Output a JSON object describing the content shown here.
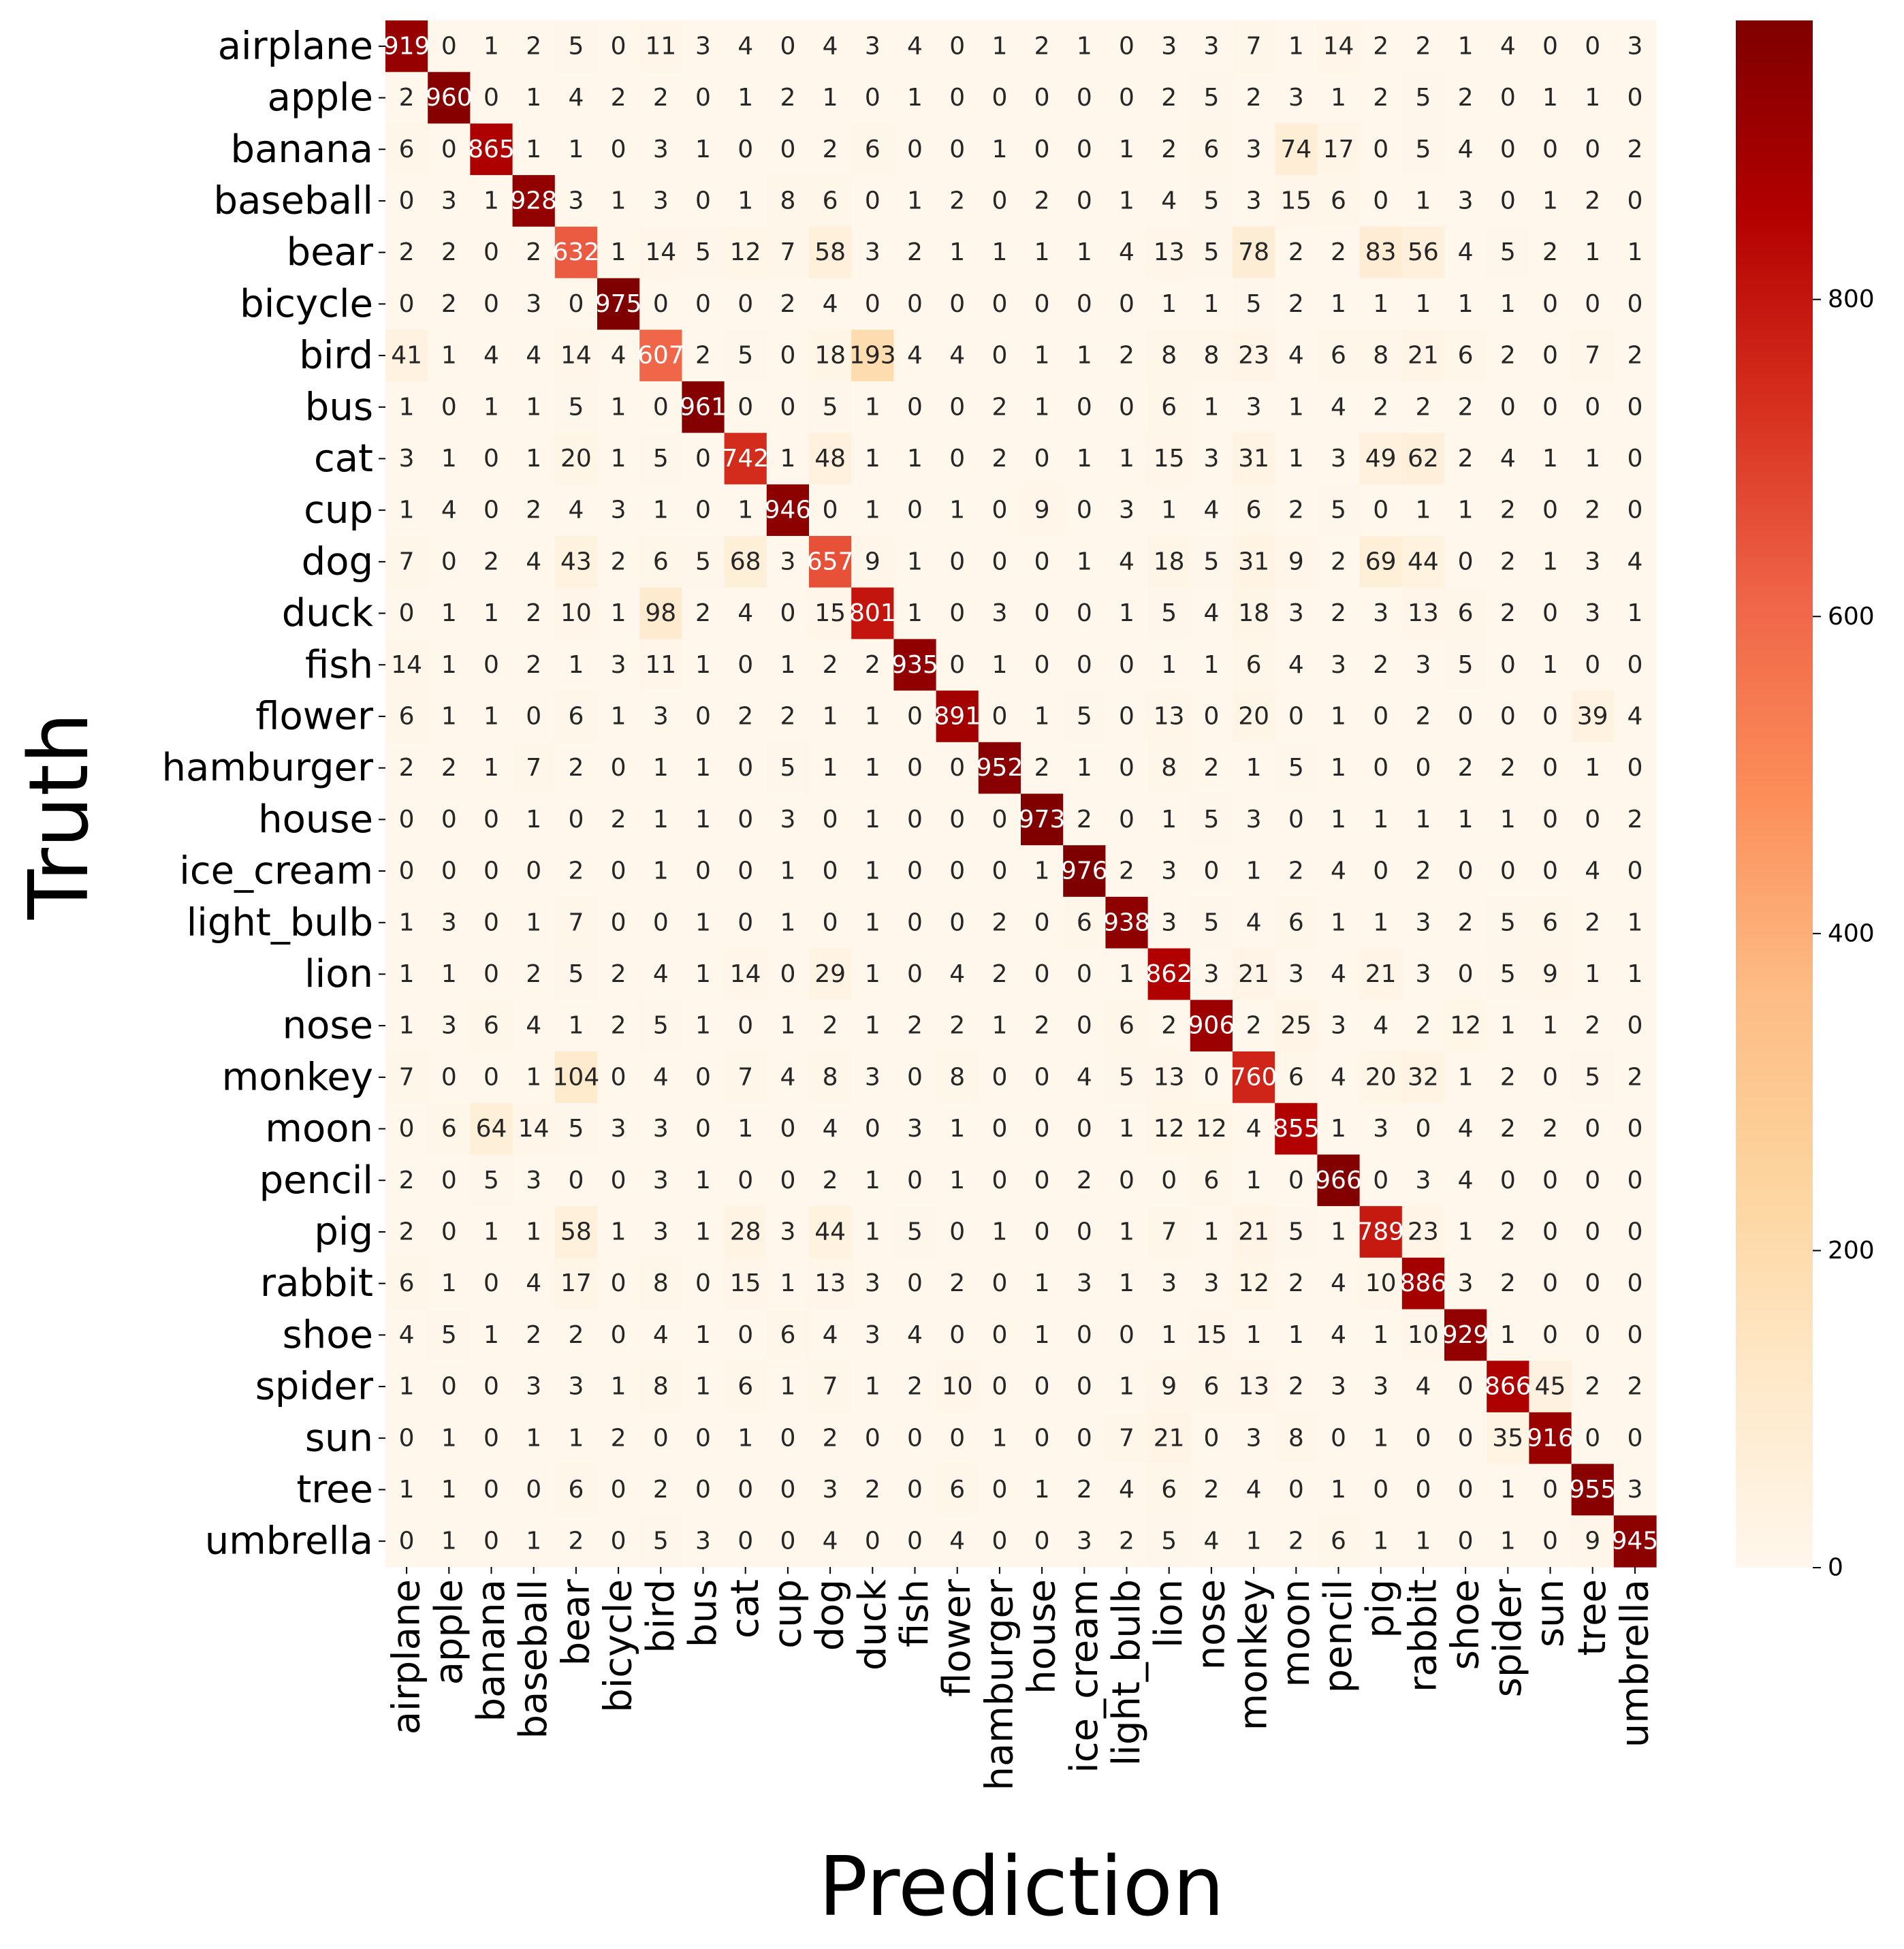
{
  "chart_data": {
    "type": "heatmap",
    "title": "",
    "xlabel": "Prediction",
    "ylabel": "Truth",
    "colormap": "OrRd",
    "colorbar": {
      "vmin": 0,
      "vmax": 976,
      "ticks": [
        0,
        200,
        400,
        600,
        800
      ]
    },
    "labels": [
      "airplane",
      "apple",
      "banana",
      "baseball",
      "bear",
      "bicycle",
      "bird",
      "bus",
      "cat",
      "cup",
      "dog",
      "duck",
      "fish",
      "flower",
      "hamburger",
      "house",
      "ice_cream",
      "light_bulb",
      "lion",
      "nose",
      "monkey",
      "moon",
      "pencil",
      "pig",
      "rabbit",
      "shoe",
      "spider",
      "sun",
      "tree",
      "umbrella"
    ],
    "matrix": [
      [
        919,
        0,
        1,
        2,
        5,
        0,
        11,
        3,
        4,
        0,
        4,
        3,
        4,
        0,
        1,
        2,
        1,
        0,
        3,
        3,
        7,
        1,
        14,
        2,
        2,
        1,
        4,
        0,
        0,
        3
      ],
      [
        2,
        960,
        0,
        1,
        4,
        2,
        2,
        0,
        1,
        2,
        1,
        0,
        1,
        0,
        0,
        0,
        0,
        0,
        2,
        5,
        2,
        3,
        1,
        2,
        5,
        2,
        0,
        1,
        1,
        0
      ],
      [
        6,
        0,
        865,
        1,
        1,
        0,
        3,
        1,
        0,
        0,
        2,
        6,
        0,
        0,
        1,
        0,
        0,
        1,
        2,
        6,
        3,
        74,
        17,
        0,
        5,
        4,
        0,
        0,
        0,
        2
      ],
      [
        0,
        3,
        1,
        928,
        3,
        1,
        3,
        0,
        1,
        8,
        6,
        0,
        1,
        2,
        0,
        2,
        0,
        1,
        4,
        5,
        3,
        15,
        6,
        0,
        1,
        3,
        0,
        1,
        2,
        0
      ],
      [
        2,
        2,
        0,
        2,
        632,
        1,
        14,
        5,
        12,
        7,
        58,
        3,
        2,
        1,
        1,
        1,
        1,
        4,
        13,
        5,
        78,
        2,
        2,
        83,
        56,
        4,
        5,
        2,
        1,
        1
      ],
      [
        0,
        2,
        0,
        3,
        0,
        975,
        0,
        0,
        0,
        2,
        4,
        0,
        0,
        0,
        0,
        0,
        0,
        0,
        1,
        1,
        5,
        2,
        1,
        1,
        1,
        1,
        1,
        0,
        0,
        0
      ],
      [
        41,
        1,
        4,
        4,
        14,
        4,
        607,
        2,
        5,
        0,
        18,
        193,
        4,
        4,
        0,
        1,
        1,
        2,
        8,
        8,
        23,
        4,
        6,
        8,
        21,
        6,
        2,
        0,
        7,
        2
      ],
      [
        1,
        0,
        1,
        1,
        5,
        1,
        0,
        961,
        0,
        0,
        5,
        1,
        0,
        0,
        2,
        1,
        0,
        0,
        6,
        1,
        3,
        1,
        4,
        2,
        2,
        2,
        0,
        0,
        0,
        0
      ],
      [
        3,
        1,
        0,
        1,
        20,
        1,
        5,
        0,
        742,
        1,
        48,
        1,
        1,
        0,
        2,
        0,
        1,
        1,
        15,
        3,
        31,
        1,
        3,
        49,
        62,
        2,
        4,
        1,
        1,
        0
      ],
      [
        1,
        4,
        0,
        2,
        4,
        3,
        1,
        0,
        1,
        946,
        0,
        1,
        0,
        1,
        0,
        9,
        0,
        3,
        1,
        4,
        6,
        2,
        5,
        0,
        1,
        1,
        2,
        0,
        2,
        0
      ],
      [
        7,
        0,
        2,
        4,
        43,
        2,
        6,
        5,
        68,
        3,
        657,
        9,
        1,
        0,
        0,
        0,
        1,
        4,
        18,
        5,
        31,
        9,
        2,
        69,
        44,
        0,
        2,
        1,
        3,
        4
      ],
      [
        0,
        1,
        1,
        2,
        10,
        1,
        98,
        2,
        4,
        0,
        15,
        801,
        1,
        0,
        3,
        0,
        0,
        1,
        5,
        4,
        18,
        3,
        2,
        3,
        13,
        6,
        2,
        0,
        3,
        1
      ],
      [
        14,
        1,
        0,
        2,
        1,
        3,
        11,
        1,
        0,
        1,
        2,
        2,
        935,
        0,
        1,
        0,
        0,
        0,
        1,
        1,
        6,
        4,
        3,
        2,
        3,
        5,
        0,
        1,
        0,
        0
      ],
      [
        6,
        1,
        1,
        0,
        6,
        1,
        3,
        0,
        2,
        2,
        1,
        1,
        0,
        891,
        0,
        1,
        5,
        0,
        13,
        0,
        20,
        0,
        1,
        0,
        2,
        0,
        0,
        0,
        39,
        4
      ],
      [
        2,
        2,
        1,
        7,
        2,
        0,
        1,
        1,
        0,
        5,
        1,
        1,
        0,
        0,
        952,
        2,
        1,
        0,
        8,
        2,
        1,
        5,
        1,
        0,
        0,
        2,
        2,
        0,
        1,
        0
      ],
      [
        0,
        0,
        0,
        1,
        0,
        2,
        1,
        1,
        0,
        3,
        0,
        1,
        0,
        0,
        0,
        973,
        2,
        0,
        1,
        5,
        3,
        0,
        1,
        1,
        1,
        1,
        1,
        0,
        0,
        2
      ],
      [
        0,
        0,
        0,
        0,
        2,
        0,
        1,
        0,
        0,
        1,
        0,
        1,
        0,
        0,
        0,
        1,
        976,
        2,
        3,
        0,
        1,
        2,
        4,
        0,
        2,
        0,
        0,
        0,
        4,
        0
      ],
      [
        1,
        3,
        0,
        1,
        7,
        0,
        0,
        1,
        0,
        1,
        0,
        1,
        0,
        0,
        2,
        0,
        6,
        938,
        3,
        5,
        4,
        6,
        1,
        1,
        3,
        2,
        5,
        6,
        2,
        1
      ],
      [
        1,
        1,
        0,
        2,
        5,
        2,
        4,
        1,
        14,
        0,
        29,
        1,
        0,
        4,
        2,
        0,
        0,
        1,
        862,
        3,
        21,
        3,
        4,
        21,
        3,
        0,
        5,
        9,
        1,
        1
      ],
      [
        1,
        3,
        6,
        4,
        1,
        2,
        5,
        1,
        0,
        1,
        2,
        1,
        2,
        2,
        1,
        2,
        0,
        6,
        2,
        906,
        2,
        25,
        3,
        4,
        2,
        12,
        1,
        1,
        2,
        0
      ],
      [
        7,
        0,
        0,
        1,
        104,
        0,
        4,
        0,
        7,
        4,
        8,
        3,
        0,
        8,
        0,
        0,
        4,
        5,
        13,
        0,
        760,
        6,
        4,
        20,
        32,
        1,
        2,
        0,
        5,
        2
      ],
      [
        0,
        6,
        64,
        14,
        5,
        3,
        3,
        0,
        1,
        0,
        4,
        0,
        3,
        1,
        0,
        0,
        0,
        1,
        12,
        12,
        4,
        855,
        1,
        3,
        0,
        4,
        2,
        2,
        0,
        0
      ],
      [
        2,
        0,
        5,
        3,
        0,
        0,
        3,
        1,
        0,
        0,
        2,
        1,
        0,
        1,
        0,
        0,
        2,
        0,
        0,
        6,
        1,
        0,
        966,
        0,
        3,
        4,
        0,
        0,
        0,
        0
      ],
      [
        2,
        0,
        1,
        1,
        58,
        1,
        3,
        1,
        28,
        3,
        44,
        1,
        5,
        0,
        1,
        0,
        0,
        1,
        7,
        1,
        21,
        5,
        1,
        789,
        23,
        1,
        2,
        0,
        0,
        0
      ],
      [
        6,
        1,
        0,
        4,
        17,
        0,
        8,
        0,
        15,
        1,
        13,
        3,
        0,
        2,
        0,
        1,
        3,
        1,
        3,
        3,
        12,
        2,
        4,
        10,
        886,
        3,
        2,
        0,
        0,
        0
      ],
      [
        4,
        5,
        1,
        2,
        2,
        0,
        4,
        1,
        0,
        6,
        4,
        3,
        4,
        0,
        0,
        1,
        0,
        0,
        1,
        15,
        1,
        1,
        4,
        1,
        10,
        929,
        1,
        0,
        0,
        0
      ],
      [
        1,
        0,
        0,
        3,
        3,
        1,
        8,
        1,
        6,
        1,
        7,
        1,
        2,
        10,
        0,
        0,
        0,
        1,
        9,
        6,
        13,
        2,
        3,
        3,
        4,
        0,
        866,
        45,
        2,
        2
      ],
      [
        0,
        1,
        0,
        1,
        1,
        2,
        0,
        0,
        1,
        0,
        2,
        0,
        0,
        0,
        1,
        0,
        0,
        7,
        21,
        0,
        3,
        8,
        0,
        1,
        0,
        0,
        35,
        916,
        0,
        0
      ],
      [
        1,
        1,
        0,
        0,
        6,
        0,
        2,
        0,
        0,
        0,
        3,
        2,
        0,
        6,
        0,
        1,
        2,
        4,
        6,
        2,
        4,
        0,
        1,
        0,
        0,
        0,
        1,
        0,
        955,
        3
      ],
      [
        0,
        1,
        0,
        1,
        2,
        0,
        5,
        3,
        0,
        0,
        4,
        0,
        0,
        4,
        0,
        0,
        3,
        2,
        5,
        4,
        1,
        2,
        6,
        1,
        1,
        0,
        1,
        0,
        9,
        945
      ]
    ]
  }
}
